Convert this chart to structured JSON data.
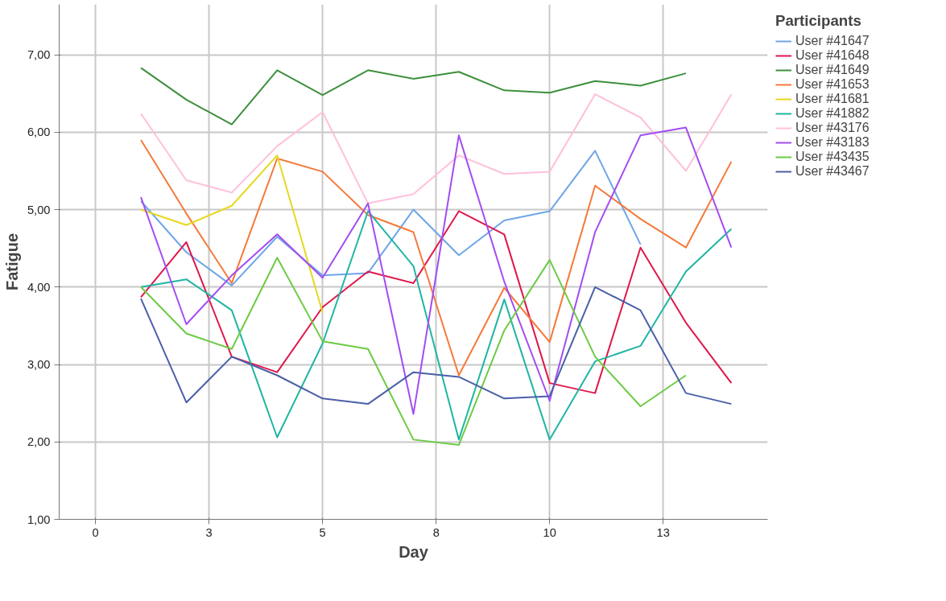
{
  "chart_data": {
    "type": "line",
    "xlabel": "Day",
    "ylabel": "Fatigue",
    "legend_title": "Participants",
    "legend": "right",
    "grid": true,
    "x": [
      1,
      2,
      3,
      4,
      5,
      6,
      7,
      8,
      9,
      10,
      11,
      12,
      13,
      14
    ],
    "xlim": [
      -0.8,
      14.8
    ],
    "ylim": [
      1,
      7.65
    ],
    "xticks": [
      0,
      {
        "value": 2.5,
        "label": "3"
      },
      5,
      {
        "value": 7.5,
        "label": "8"
      },
      10,
      {
        "value": 12.5,
        "label": "13"
      }
    ],
    "yticks": [
      {
        "value": 1,
        "label": "1,00"
      },
      {
        "value": 2,
        "label": "2,00"
      },
      {
        "value": 3,
        "label": "3,00"
      },
      {
        "value": 4,
        "label": "4,00"
      },
      {
        "value": 5,
        "label": "5,00"
      },
      {
        "value": 6,
        "label": "6,00"
      },
      {
        "value": 7,
        "label": "7,00"
      }
    ],
    "series": [
      {
        "name": "User #41647",
        "color": "#6ea5e8",
        "values": [
          5.11,
          4.45,
          4.02,
          4.65,
          4.15,
          4.18,
          5.0,
          4.41,
          4.86,
          4.98,
          5.76,
          4.55,
          null,
          null
        ]
      },
      {
        "name": "User #41648",
        "color": "#e0174b",
        "values": [
          3.87,
          4.58,
          3.1,
          2.9,
          3.74,
          4.2,
          4.05,
          4.98,
          4.68,
          2.76,
          2.63,
          4.51,
          3.54,
          2.76
        ]
      },
      {
        "name": "User #41649",
        "color": "#3d8f3d",
        "values": [
          6.83,
          6.42,
          6.1,
          6.8,
          6.48,
          6.8,
          6.69,
          6.78,
          6.54,
          6.51,
          6.66,
          6.6,
          6.76,
          null
        ]
      },
      {
        "name": "User #41653",
        "color": "#f5793a",
        "values": [
          5.9,
          4.95,
          4.05,
          5.66,
          5.49,
          4.93,
          4.71,
          2.86,
          3.99,
          3.29,
          5.31,
          4.88,
          4.51,
          5.62
        ]
      },
      {
        "name": "User #41681",
        "color": "#e6d81e",
        "values": [
          5.0,
          4.8,
          5.05,
          5.7,
          3.67,
          null,
          null,
          null,
          null,
          null,
          null,
          null,
          null,
          null
        ]
      },
      {
        "name": "User #41882",
        "color": "#1fb5a3",
        "values": [
          4.0,
          4.1,
          3.7,
          2.06,
          3.27,
          4.98,
          4.27,
          2.03,
          3.84,
          2.03,
          3.04,
          3.24,
          4.2,
          4.75
        ]
      },
      {
        "name": "User #43176",
        "color": "#ffbfdd",
        "values": [
          6.24,
          5.38,
          5.22,
          5.82,
          6.26,
          5.08,
          5.2,
          5.7,
          5.46,
          5.49,
          6.49,
          6.19,
          5.5,
          6.49
        ]
      },
      {
        "name": "User #43183",
        "color": "#a34cf2",
        "values": [
          5.16,
          3.52,
          4.15,
          4.68,
          4.12,
          5.08,
          2.36,
          5.96,
          4.07,
          2.53,
          4.71,
          5.96,
          6.06,
          4.51
        ]
      },
      {
        "name": "User #43435",
        "color": "#6ccb45",
        "values": [
          4.0,
          3.4,
          3.2,
          4.38,
          3.3,
          3.2,
          2.03,
          1.96,
          3.44,
          4.35,
          3.1,
          2.46,
          2.86,
          null
        ]
      },
      {
        "name": "User #43467",
        "color": "#4a5fa8",
        "values": [
          3.85,
          2.51,
          3.1,
          2.86,
          2.56,
          2.49,
          2.9,
          2.84,
          2.56,
          2.59,
          4.0,
          3.7,
          2.63,
          2.49
        ]
      }
    ]
  }
}
